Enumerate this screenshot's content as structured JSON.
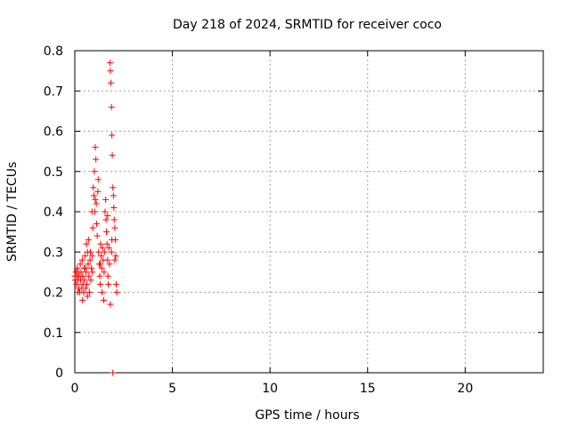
{
  "chart_data": {
    "type": "scatter",
    "title": "Day 218 of 2024, SRMTID for receiver coco",
    "xlabel": "GPS time / hours",
    "ylabel": "SRMTID / TECUs",
    "xlim": [
      0,
      24
    ],
    "ylim": [
      0,
      0.8
    ],
    "xticks": [
      0,
      5,
      10,
      15,
      20
    ],
    "xtick_labels": [
      "0",
      "5",
      "10",
      "15",
      "20"
    ],
    "yticks": [
      0,
      0.1,
      0.2,
      0.3,
      0.4,
      0.5,
      0.6,
      0.7,
      0.8
    ],
    "ytick_labels": [
      "0",
      "0.1",
      "0.2",
      "0.3",
      "0.4",
      "0.5",
      "0.6",
      "0.7",
      "0.8"
    ],
    "grid": true,
    "marker": "+",
    "series": [
      {
        "name": "SRMTID",
        "color": "#ff0000",
        "points": [
          [
            0.0,
            0.24
          ],
          [
            0.02,
            0.23
          ],
          [
            0.05,
            0.25
          ],
          [
            0.08,
            0.22
          ],
          [
            0.1,
            0.24
          ],
          [
            0.12,
            0.26
          ],
          [
            0.15,
            0.23
          ],
          [
            0.18,
            0.25
          ],
          [
            0.2,
            0.21
          ],
          [
            0.22,
            0.24
          ],
          [
            0.25,
            0.2
          ],
          [
            0.28,
            0.27
          ],
          [
            0.3,
            0.23
          ],
          [
            0.32,
            0.25
          ],
          [
            0.35,
            0.21
          ],
          [
            0.38,
            0.28
          ],
          [
            0.4,
            0.24
          ],
          [
            0.42,
            0.22
          ],
          [
            0.45,
            0.2
          ],
          [
            0.48,
            0.26
          ],
          [
            0.5,
            0.23
          ],
          [
            0.52,
            0.29
          ],
          [
            0.55,
            0.21
          ],
          [
            0.58,
            0.25
          ],
          [
            0.6,
            0.32
          ],
          [
            0.62,
            0.22
          ],
          [
            0.65,
            0.19
          ],
          [
            0.68,
            0.27
          ],
          [
            0.7,
            0.33
          ],
          [
            0.72,
            0.24
          ],
          [
            0.75,
            0.2
          ],
          [
            0.78,
            0.28
          ],
          [
            0.8,
            0.3
          ],
          [
            0.82,
            0.23
          ],
          [
            0.85,
            0.26
          ],
          [
            0.88,
            0.29
          ],
          [
            0.9,
            0.25
          ],
          [
            0.92,
            0.36
          ],
          [
            0.95,
            0.46
          ],
          [
            0.98,
            0.44
          ],
          [
            1.0,
            0.5
          ],
          [
            1.02,
            0.4
          ],
          [
            1.05,
            0.56
          ],
          [
            1.08,
            0.53
          ],
          [
            1.1,
            0.42
          ],
          [
            1.12,
            0.37
          ],
          [
            1.15,
            0.34
          ],
          [
            1.18,
            0.45
          ],
          [
            1.2,
            0.48
          ],
          [
            1.22,
            0.3
          ],
          [
            1.25,
            0.27
          ],
          [
            1.28,
            0.24
          ],
          [
            1.3,
            0.22
          ],
          [
            1.32,
            0.32
          ],
          [
            1.35,
            0.29
          ],
          [
            1.38,
            0.26
          ],
          [
            1.4,
            0.2
          ],
          [
            1.42,
            0.31
          ],
          [
            1.45,
            0.28
          ],
          [
            1.48,
            0.18
          ],
          [
            1.5,
            0.25
          ],
          [
            1.52,
            0.3
          ],
          [
            1.55,
            0.4
          ],
          [
            1.58,
            0.43
          ],
          [
            1.6,
            0.38
          ],
          [
            1.62,
            0.35
          ],
          [
            1.65,
            0.32
          ],
          [
            1.68,
            0.28
          ],
          [
            1.7,
            0.24
          ],
          [
            1.72,
            0.22
          ],
          [
            1.75,
            0.31
          ],
          [
            1.78,
            0.27
          ],
          [
            1.8,
            0.77
          ],
          [
            1.82,
            0.75
          ],
          [
            1.85,
            0.72
          ],
          [
            1.88,
            0.66
          ],
          [
            1.9,
            0.59
          ],
          [
            1.92,
            0.54
          ],
          [
            1.95,
            0.46
          ],
          [
            1.98,
            0.44
          ],
          [
            2.0,
            0.41
          ],
          [
            2.02,
            0.38
          ],
          [
            2.05,
            0.36
          ],
          [
            2.08,
            0.33
          ],
          [
            2.1,
            0.29
          ],
          [
            2.12,
            0.22
          ],
          [
            2.15,
            0.2
          ],
          [
            1.82,
            0.17
          ],
          [
            1.88,
            0.3
          ],
          [
            2.05,
            0.28
          ],
          [
            0.65,
            0.3
          ],
          [
            0.88,
            0.4
          ],
          [
            1.05,
            0.43
          ],
          [
            1.3,
            0.27
          ],
          [
            1.68,
            0.39
          ],
          [
            1.9,
            0.33
          ],
          [
            0.15,
            0.2
          ],
          [
            0.4,
            0.18
          ],
          [
            0.55,
            0.26
          ],
          [
            1.95,
            0.0
          ]
        ]
      }
    ]
  }
}
